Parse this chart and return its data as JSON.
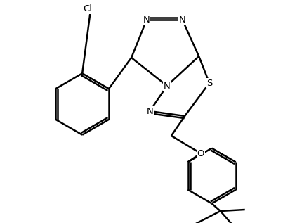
{
  "background_color": "#ffffff",
  "line_color": "#000000",
  "line_width": 1.8,
  "font_size": 9.5,
  "figsize": [
    4.03,
    3.17
  ],
  "dpi": 100,
  "xlim": [
    -1.5,
    8.5
  ],
  "ylim": [
    -5.5,
    3.5
  ]
}
